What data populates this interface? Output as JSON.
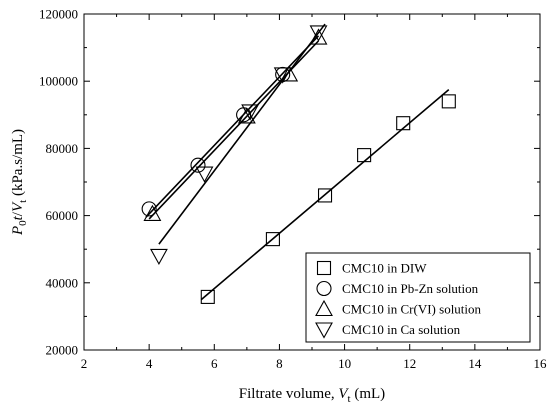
{
  "chart_data": {
    "type": "scatter",
    "title": "",
    "xlabel": {
      "main": "Filtrate volume, ",
      "var": "V",
      "sub": "t",
      "unit": " (mL)"
    },
    "ylabel": {
      "p": "P",
      "p_sub": "0",
      "t": "t",
      "slash": "/",
      "v": "V",
      "v_sub": "t",
      "unit": " (kPa.s/mL)"
    },
    "xlim": [
      2,
      16
    ],
    "ylim": [
      20000,
      120000
    ],
    "xticks": [
      2,
      4,
      6,
      8,
      10,
      12,
      14,
      16
    ],
    "yticks": [
      20000,
      40000,
      60000,
      80000,
      100000,
      120000
    ],
    "xtick_labels": [
      "2",
      "4",
      "6",
      "8",
      "10",
      "12",
      "14",
      "16"
    ],
    "ytick_labels": [
      "20000",
      "40000",
      "60000",
      "80000",
      "100000",
      "120000"
    ],
    "grid": false,
    "legend_position": "bottom-right",
    "series": [
      {
        "name": "CMC10 in DIW",
        "marker": "square",
        "x": [
          5.8,
          7.8,
          9.4,
          10.6,
          11.8,
          13.2
        ],
        "y": [
          35800,
          53000,
          66000,
          78000,
          87500,
          94000
        ],
        "fit": [
          [
            5.6,
            35000
          ],
          [
            13.2,
            97500
          ]
        ]
      },
      {
        "name": "CMC10 in Pb-Zn solution",
        "marker": "circle",
        "x": [
          4.0,
          5.5,
          6.9,
          8.1
        ],
        "y": [
          62000,
          75000,
          90000,
          102000
        ],
        "fit": [
          [
            3.9,
            59500
          ],
          [
            9.2,
            113500
          ]
        ]
      },
      {
        "name": "CMC10 in Cr(VI) solution",
        "marker": "triangle-up",
        "x": [
          4.1,
          7.0,
          8.3,
          9.2
        ],
        "y": [
          60500,
          89500,
          102000,
          113000
        ],
        "fit": [
          [
            4.0,
            59000
          ],
          [
            9.2,
            112000
          ]
        ]
      },
      {
        "name": "CMC10 in Ca solution",
        "marker": "triangle-down",
        "x": [
          4.3,
          5.7,
          7.1,
          8.1,
          9.2
        ],
        "y": [
          48000,
          72500,
          91000,
          102000,
          114500
        ],
        "fit": [
          [
            4.3,
            51500
          ],
          [
            9.4,
            117000
          ]
        ]
      }
    ]
  }
}
